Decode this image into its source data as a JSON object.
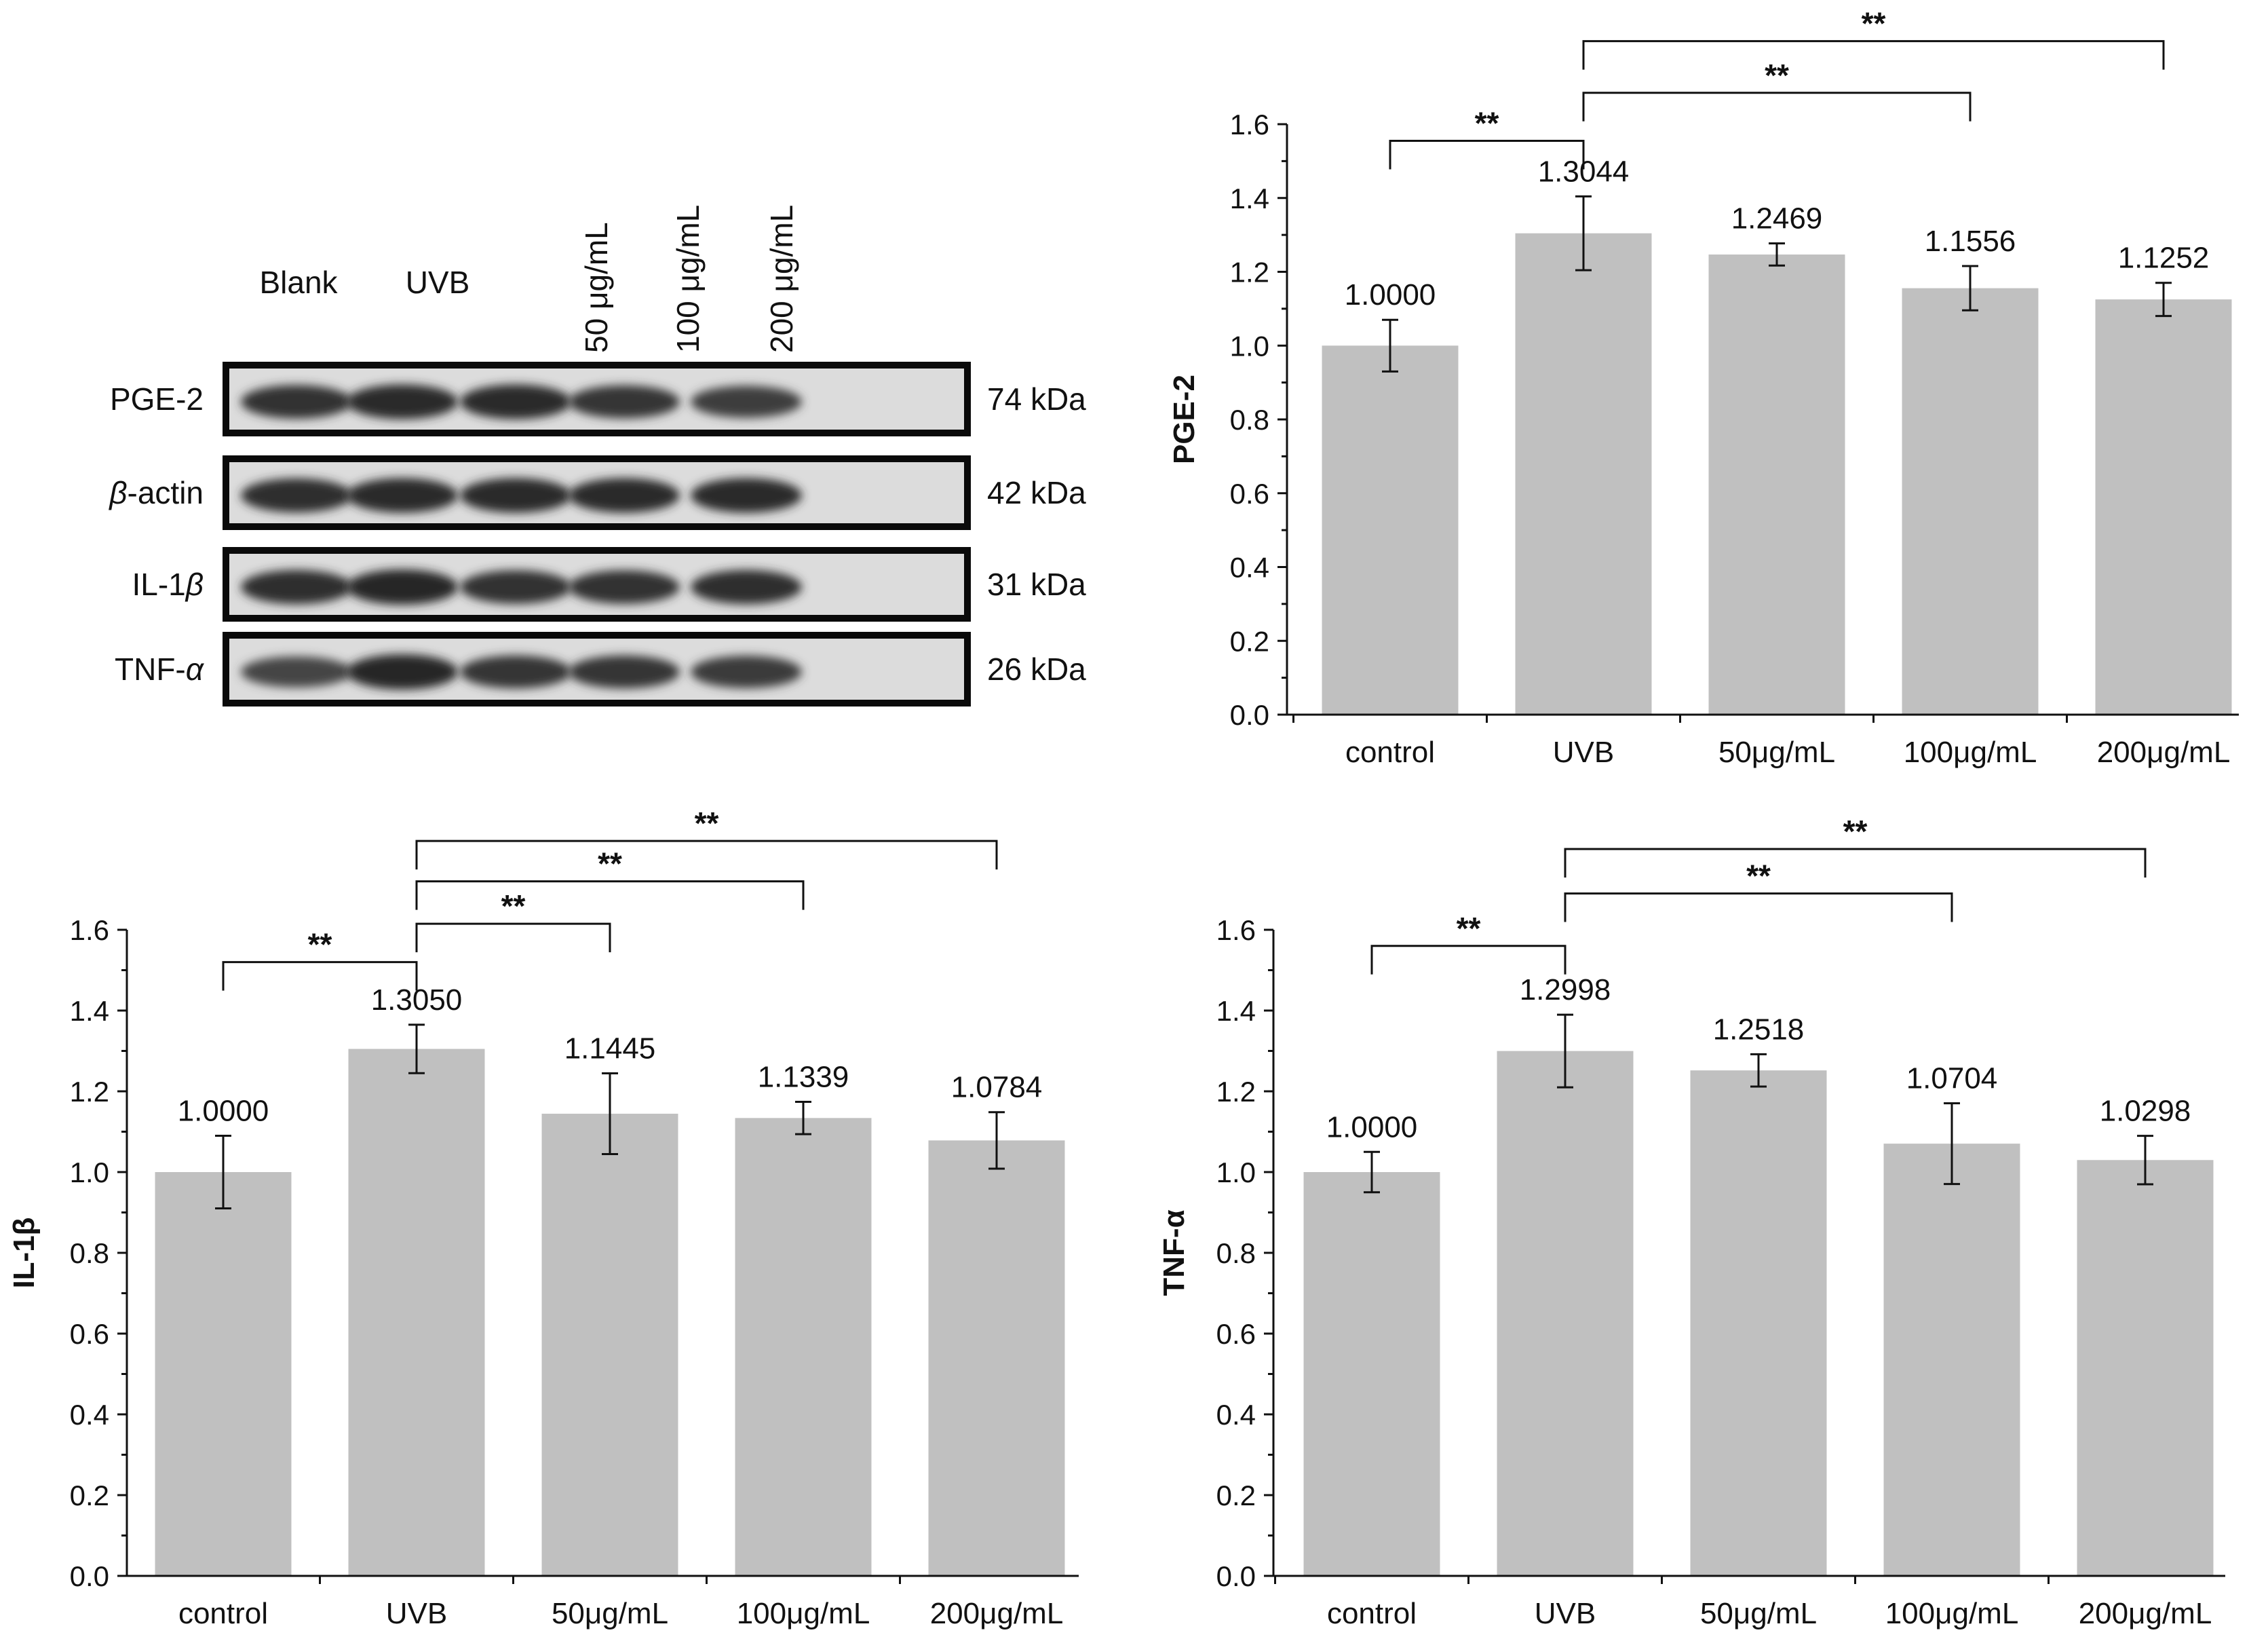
{
  "blot": {
    "lanes": [
      "Blank",
      "UVB",
      "50 μg/mL",
      "100 μg/mL",
      "200 μg/mL"
    ],
    "rows": [
      {
        "name": "PGE-2",
        "name_italic": "",
        "name_rest": "",
        "kda": "74 kDa",
        "intensity": [
          0.85,
          0.95,
          0.95,
          0.8,
          0.7
        ]
      },
      {
        "name": "",
        "name_italic": "β",
        "name_rest": "-actin",
        "kda": "42 kDa",
        "intensity": [
          0.9,
          0.95,
          0.95,
          0.95,
          0.95
        ]
      },
      {
        "name": "IL-1",
        "name_italic": "β",
        "name_rest": "",
        "kda": "31 kDa",
        "intensity": [
          0.9,
          1.0,
          0.85,
          0.85,
          0.9
        ]
      },
      {
        "name": "TNF-",
        "name_italic": "α",
        "name_rest": "",
        "kda": "26 kDa",
        "intensity": [
          0.6,
          1.0,
          0.8,
          0.8,
          0.75
        ]
      }
    ]
  },
  "chart_data": [
    {
      "type": "bar",
      "title": "",
      "ylabel": "PGE-2",
      "xlabel": "",
      "categories": [
        "control",
        "UVB",
        "50μg/mL",
        "100μg/mL",
        "200μg/mL"
      ],
      "values": [
        1.0,
        1.3044,
        1.2469,
        1.1556,
        1.1252
      ],
      "value_labels": [
        "1.0000",
        "1.3044",
        "1.2469",
        "1.1556",
        "1.1252"
      ],
      "errors": [
        0.07,
        0.1,
        0.03,
        0.06,
        0.045
      ],
      "ylim": [
        0,
        1.6
      ],
      "yticks": [
        "0.0",
        "0.2",
        "0.4",
        "0.6",
        "0.8",
        "1.0",
        "1.2",
        "1.4",
        "1.6"
      ],
      "bar_color": "#c0c0c0",
      "significance": [
        {
          "from": 0,
          "to": 1,
          "label": "**",
          "level": 1.555
        },
        {
          "from": 1,
          "to": 3,
          "label": "**",
          "level": 1.685
        },
        {
          "from": 1,
          "to": 4,
          "label": "**",
          "level": 1.825
        }
      ]
    },
    {
      "type": "bar",
      "title": "",
      "ylabel": "IL-1β",
      "xlabel": "",
      "categories": [
        "control",
        "UVB",
        "50μg/mL",
        "100μg/mL",
        "200μg/mL"
      ],
      "values": [
        1.0,
        1.305,
        1.1445,
        1.1339,
        1.0784
      ],
      "value_labels": [
        "1.0000",
        "1.3050",
        "1.1445",
        "1.1339",
        "1.0784"
      ],
      "errors": [
        0.09,
        0.06,
        0.1,
        0.04,
        0.07
      ],
      "ylim": [
        0,
        1.6
      ],
      "yticks": [
        "0.0",
        "0.2",
        "0.4",
        "0.6",
        "0.8",
        "1.0",
        "1.2",
        "1.4",
        "1.6"
      ],
      "bar_color": "#c0c0c0",
      "significance": [
        {
          "from": 0,
          "to": 1,
          "label": "**",
          "level": 1.52
        },
        {
          "from": 1,
          "to": 2,
          "label": "**",
          "level": 1.615
        },
        {
          "from": 1,
          "to": 3,
          "label": "**",
          "level": 1.72
        },
        {
          "from": 1,
          "to": 4,
          "label": "**",
          "level": 1.82
        }
      ]
    },
    {
      "type": "bar",
      "title": "",
      "ylabel": "TNF-α",
      "xlabel": "",
      "categories": [
        "control",
        "UVB",
        "50μg/mL",
        "100μg/mL",
        "200μg/mL"
      ],
      "values": [
        1.0,
        1.2998,
        1.2518,
        1.0704,
        1.0298
      ],
      "value_labels": [
        "1.0000",
        "1.2998",
        "1.2518",
        "1.0704",
        "1.0298"
      ],
      "errors": [
        0.05,
        0.09,
        0.04,
        0.1,
        0.06
      ],
      "ylim": [
        0,
        1.6
      ],
      "yticks": [
        "0.0",
        "0.2",
        "0.4",
        "0.6",
        "0.8",
        "1.0",
        "1.2",
        "1.4",
        "1.6"
      ],
      "bar_color": "#c0c0c0",
      "significance": [
        {
          "from": 0,
          "to": 1,
          "label": "**",
          "level": 1.56
        },
        {
          "from": 1,
          "to": 3,
          "label": "**",
          "level": 1.69
        },
        {
          "from": 1,
          "to": 4,
          "label": "**",
          "level": 1.8
        }
      ]
    }
  ]
}
